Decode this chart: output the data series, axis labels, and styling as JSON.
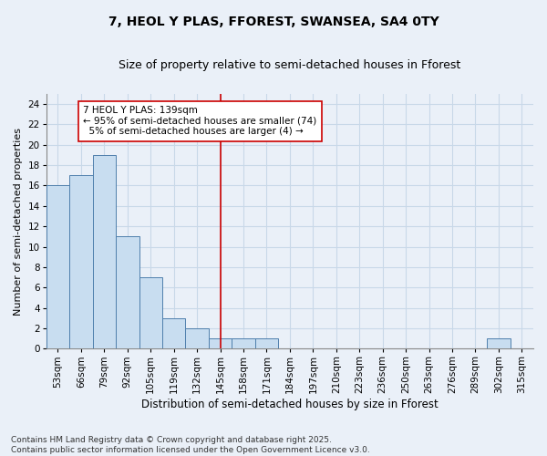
{
  "title1": "7, HEOL Y PLAS, FFOREST, SWANSEA, SA4 0TY",
  "title2": "Size of property relative to semi-detached houses in Fforest",
  "xlabel": "Distribution of semi-detached houses by size in Fforest",
  "ylabel": "Number of semi-detached properties",
  "categories": [
    "53sqm",
    "66sqm",
    "79sqm",
    "92sqm",
    "105sqm",
    "119sqm",
    "132sqm",
    "145sqm",
    "158sqm",
    "171sqm",
    "184sqm",
    "197sqm",
    "210sqm",
    "223sqm",
    "236sqm",
    "250sqm",
    "263sqm",
    "276sqm",
    "289sqm",
    "302sqm",
    "315sqm"
  ],
  "values": [
    16,
    17,
    19,
    11,
    7,
    3,
    2,
    1,
    1,
    1,
    0,
    0,
    0,
    0,
    0,
    0,
    0,
    0,
    0,
    1,
    0
  ],
  "bar_color": "#c8ddf0",
  "bar_edge_color": "#4f7fac",
  "grid_color": "#c8d8e8",
  "background_color": "#eaf0f8",
  "vline_x": 7.0,
  "vline_color": "#cc0000",
  "annotation_text": "7 HEOL Y PLAS: 139sqm\n← 95% of semi-detached houses are smaller (74)\n  5% of semi-detached houses are larger (4) →",
  "annotation_box_color": "white",
  "annotation_edge_color": "#cc0000",
  "ylim": [
    0,
    25
  ],
  "yticks": [
    0,
    2,
    4,
    6,
    8,
    10,
    12,
    14,
    16,
    18,
    20,
    22,
    24
  ],
  "footer": "Contains HM Land Registry data © Crown copyright and database right 2025.\nContains public sector information licensed under the Open Government Licence v3.0.",
  "title1_fontsize": 10,
  "title2_fontsize": 9,
  "xlabel_fontsize": 8.5,
  "ylabel_fontsize": 8,
  "tick_fontsize": 7.5,
  "annot_fontsize": 7.5,
  "footer_fontsize": 6.5
}
